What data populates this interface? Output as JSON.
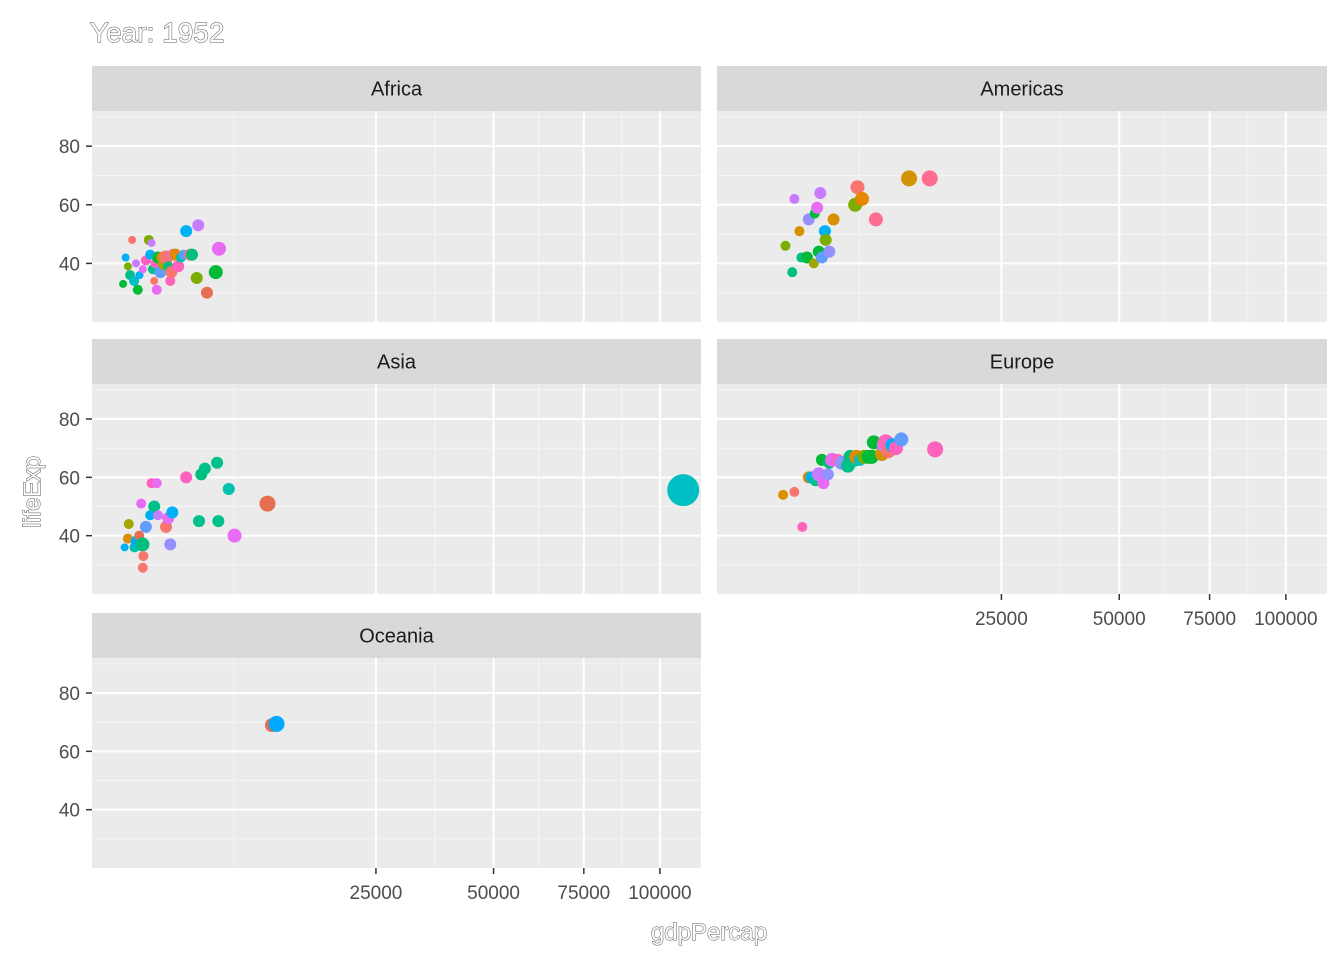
{
  "chart_data": {
    "type": "scatter",
    "title": "Year: 1952",
    "xlabel": "gdpPercap",
    "ylabel": "lifeExp",
    "xlim": [
      0,
      115000
    ],
    "ylim": [
      20,
      92
    ],
    "x_ticks": [
      25000,
      50000,
      75000,
      100000
    ],
    "x_tick_labels": [
      "25000",
      "50000",
      "75000",
      "100000"
    ],
    "y_ticks": [
      40,
      60,
      80
    ],
    "y_tick_labels": [
      "40",
      "60",
      "80"
    ],
    "x_scale": "sqrt",
    "grid": true,
    "legend": "none",
    "facets": [
      {
        "name": "Africa",
        "points": [
          {
            "x": 300,
            "y": 33,
            "color": "#00BA38",
            "size": 4
          },
          {
            "x": 350,
            "y": 42,
            "color": "#00B0F6",
            "size": 4
          },
          {
            "x": 400,
            "y": 39,
            "color": "#7CAE00",
            "size": 4
          },
          {
            "x": 450,
            "y": 36,
            "color": "#00C08B",
            "size": 5
          },
          {
            "x": 500,
            "y": 48,
            "color": "#F8766D",
            "size": 4
          },
          {
            "x": 550,
            "y": 34,
            "color": "#00BFC4",
            "size": 5
          },
          {
            "x": 600,
            "y": 40,
            "color": "#C77CFF",
            "size": 4
          },
          {
            "x": 650,
            "y": 31,
            "color": "#00BA38",
            "size": 5
          },
          {
            "x": 700,
            "y": 36,
            "color": "#00B0F6",
            "size": 4
          },
          {
            "x": 800,
            "y": 38,
            "color": "#E76BF3",
            "size": 4
          },
          {
            "x": 900,
            "y": 41,
            "color": "#FF62BC",
            "size": 5
          },
          {
            "x": 1000,
            "y": 48,
            "color": "#7CAE00",
            "size": 5
          },
          {
            "x": 1050,
            "y": 43,
            "color": "#00B0F6",
            "size": 5
          },
          {
            "x": 1100,
            "y": 47,
            "color": "#C77CFF",
            "size": 4
          },
          {
            "x": 1150,
            "y": 38,
            "color": "#00C08B",
            "size": 5
          },
          {
            "x": 1200,
            "y": 34,
            "color": "#F8766D",
            "size": 4
          },
          {
            "x": 1250,
            "y": 40,
            "color": "#FF62BC",
            "size": 5
          },
          {
            "x": 1300,
            "y": 31,
            "color": "#E76BF3",
            "size": 5
          },
          {
            "x": 1350,
            "y": 42,
            "color": "#00BA38",
            "size": 6
          },
          {
            "x": 1450,
            "y": 37,
            "color": "#619CFF",
            "size": 6
          },
          {
            "x": 1550,
            "y": 42,
            "color": "#D89000",
            "size": 6
          },
          {
            "x": 1650,
            "y": 40,
            "color": "#A3A500",
            "size": 7
          },
          {
            "x": 1700,
            "y": 42,
            "color": "#F8766D",
            "size": 7
          },
          {
            "x": 1800,
            "y": 39,
            "color": "#00BF7D",
            "size": 5
          },
          {
            "x": 1900,
            "y": 34,
            "color": "#FF62BC",
            "size": 5
          },
          {
            "x": 1950,
            "y": 37,
            "color": "#F8766D",
            "size": 6
          },
          {
            "x": 2050,
            "y": 43,
            "color": "#E76BF3",
            "size": 6
          },
          {
            "x": 2150,
            "y": 43,
            "color": "#E58700",
            "size": 6
          },
          {
            "x": 2300,
            "y": 39,
            "color": "#FF62BC",
            "size": 6
          },
          {
            "x": 2450,
            "y": 42,
            "color": "#00C0AF",
            "size": 5
          },
          {
            "x": 2600,
            "y": 43,
            "color": "#619CFF",
            "size": 5
          },
          {
            "x": 2750,
            "y": 51,
            "color": "#00B0F6",
            "size": 6
          },
          {
            "x": 3000,
            "y": 43,
            "color": "#F8766D",
            "size": 6
          },
          {
            "x": 3100,
            "y": 43,
            "color": "#00BF7D",
            "size": 6
          },
          {
            "x": 3400,
            "y": 35,
            "color": "#7CAE00",
            "size": 6
          },
          {
            "x": 3500,
            "y": 53,
            "color": "#C77CFF",
            "size": 6
          },
          {
            "x": 4100,
            "y": 30,
            "color": "#E76F51",
            "size": 6
          },
          {
            "x": 4750,
            "y": 37,
            "color": "#00BA38",
            "size": 7
          },
          {
            "x": 5000,
            "y": 45,
            "color": "#E76BF3",
            "size": 7
          }
        ]
      },
      {
        "name": "Americas",
        "points": [
          {
            "x": 1450,
            "y": 46,
            "color": "#7CAE00",
            "size": 5
          },
          {
            "x": 1750,
            "y": 37,
            "color": "#00BF7D",
            "size": 5
          },
          {
            "x": 1850,
            "y": 62,
            "color": "#C77CFF",
            "size": 5
          },
          {
            "x": 2100,
            "y": 51,
            "color": "#D89000",
            "size": 5
          },
          {
            "x": 2200,
            "y": 42,
            "color": "#00C08B",
            "size": 5
          },
          {
            "x": 2500,
            "y": 42,
            "color": "#00BA38",
            "size": 6
          },
          {
            "x": 2600,
            "y": 55,
            "color": "#9590FF",
            "size": 6
          },
          {
            "x": 2900,
            "y": 40,
            "color": "#A3A500",
            "size": 5
          },
          {
            "x": 2950,
            "y": 57,
            "color": "#00BA38",
            "size": 5
          },
          {
            "x": 3100,
            "y": 59,
            "color": "#E76BF3",
            "size": 6
          },
          {
            "x": 3200,
            "y": 44,
            "color": "#00BA38",
            "size": 6
          },
          {
            "x": 3300,
            "y": 64,
            "color": "#C77CFF",
            "size": 6
          },
          {
            "x": 3400,
            "y": 42,
            "color": "#619CFF",
            "size": 6
          },
          {
            "x": 3600,
            "y": 51,
            "color": "#00B0F6",
            "size": 6
          },
          {
            "x": 3650,
            "y": 48,
            "color": "#7CAE00",
            "size": 6
          },
          {
            "x": 3900,
            "y": 44,
            "color": "#9590FF",
            "size": 6
          },
          {
            "x": 4200,
            "y": 55,
            "color": "#D89000",
            "size": 6
          },
          {
            "x": 5900,
            "y": 60,
            "color": "#7CAE00",
            "size": 7
          },
          {
            "x": 6100,
            "y": 66,
            "color": "#F8766D",
            "size": 7
          },
          {
            "x": 6500,
            "y": 62,
            "color": "#E58700",
            "size": 7
          },
          {
            "x": 7800,
            "y": 55,
            "color": "#FF6C91",
            "size": 7
          },
          {
            "x": 11400,
            "y": 69,
            "color": "#D39200",
            "size": 8
          },
          {
            "x": 13990,
            "y": 69,
            "color": "#FF6C91",
            "size": 8
          }
        ]
      },
      {
        "name": "Asia",
        "points": [
          {
            "x": 330,
            "y": 36,
            "color": "#00B0F6",
            "size": 4
          },
          {
            "x": 400,
            "y": 39,
            "color": "#D89000",
            "size": 5
          },
          {
            "x": 420,
            "y": 44,
            "color": "#A3A500",
            "size": 5
          },
          {
            "x": 560,
            "y": 36,
            "color": "#00C0AF",
            "size": 5
          },
          {
            "x": 620,
            "y": 38,
            "color": "#00A9FF",
            "size": 6
          },
          {
            "x": 690,
            "y": 40,
            "color": "#E76F51",
            "size": 5
          },
          {
            "x": 750,
            "y": 51,
            "color": "#E76BF3",
            "size": 5
          },
          {
            "x": 790,
            "y": 37,
            "color": "#00BF7D",
            "size": 7
          },
          {
            "x": 800,
            "y": 29,
            "color": "#F8766D",
            "size": 5
          },
          {
            "x": 820,
            "y": 33,
            "color": "#F8766D",
            "size": 5
          },
          {
            "x": 900,
            "y": 43,
            "color": "#619CFF",
            "size": 6
          },
          {
            "x": 1050,
            "y": 47,
            "color": "#00B0F6",
            "size": 5
          },
          {
            "x": 1100,
            "y": 58,
            "color": "#FF62BC",
            "size": 5
          },
          {
            "x": 1200,
            "y": 50,
            "color": "#00C08B",
            "size": 6
          },
          {
            "x": 1300,
            "y": 58,
            "color": "#E76BF3",
            "size": 5
          },
          {
            "x": 1350,
            "y": 47,
            "color": "#C77CFF",
            "size": 5
          },
          {
            "x": 1700,
            "y": 43,
            "color": "#F8766D",
            "size": 6
          },
          {
            "x": 1800,
            "y": 46,
            "color": "#E76BF3",
            "size": 6
          },
          {
            "x": 1900,
            "y": 37,
            "color": "#9590FF",
            "size": 6
          },
          {
            "x": 2000,
            "y": 48,
            "color": "#00B0F6",
            "size": 6
          },
          {
            "x": 2750,
            "y": 60,
            "color": "#FF62BC",
            "size": 6
          },
          {
            "x": 3550,
            "y": 45,
            "color": "#00C08B",
            "size": 6
          },
          {
            "x": 3700,
            "y": 61,
            "color": "#00BF7D",
            "size": 6
          },
          {
            "x": 3950,
            "y": 63,
            "color": "#00C08B",
            "size": 6
          },
          {
            "x": 4850,
            "y": 65,
            "color": "#00C08B",
            "size": 6
          },
          {
            "x": 4950,
            "y": 45,
            "color": "#00C08B",
            "size": 6
          },
          {
            "x": 5800,
            "y": 56,
            "color": "#00C0AF",
            "size": 6
          },
          {
            "x": 6300,
            "y": 40,
            "color": "#E76BF3",
            "size": 7
          },
          {
            "x": 9550,
            "y": 51,
            "color": "#E76F51",
            "size": 8
          },
          {
            "x": 108382,
            "y": 55.6,
            "color": "#00BFC4",
            "size": 16
          }
        ]
      },
      {
        "name": "Europe",
        "points": [
          {
            "x": 1350,
            "y": 54,
            "color": "#D89000",
            "size": 5
          },
          {
            "x": 1850,
            "y": 55,
            "color": "#F8766D",
            "size": 5
          },
          {
            "x": 2250,
            "y": 43,
            "color": "#FF62BC",
            "size": 5
          },
          {
            "x": 2600,
            "y": 60,
            "color": "#E58700",
            "size": 6
          },
          {
            "x": 2750,
            "y": 60,
            "color": "#00B0F6",
            "size": 6
          },
          {
            "x": 3000,
            "y": 59,
            "color": "#00C08B",
            "size": 6
          },
          {
            "x": 3200,
            "y": 61,
            "color": "#C77CFF",
            "size": 7
          },
          {
            "x": 3400,
            "y": 66,
            "color": "#00BA38",
            "size": 6
          },
          {
            "x": 3500,
            "y": 58,
            "color": "#E76BF3",
            "size": 6
          },
          {
            "x": 3800,
            "y": 61,
            "color": "#9590FF",
            "size": 6
          },
          {
            "x": 3900,
            "y": 65,
            "color": "#00BF7D",
            "size": 6
          },
          {
            "x": 4100,
            "y": 66,
            "color": "#E76BF3",
            "size": 7
          },
          {
            "x": 4500,
            "y": 66,
            "color": "#FF62BC",
            "size": 6
          },
          {
            "x": 4800,
            "y": 65,
            "color": "#9590FF",
            "size": 7
          },
          {
            "x": 5300,
            "y": 64,
            "color": "#00C08B",
            "size": 7
          },
          {
            "x": 5500,
            "y": 67,
            "color": "#00BF7D",
            "size": 7
          },
          {
            "x": 5800,
            "y": 66,
            "color": "#00C08B",
            "size": 7
          },
          {
            "x": 6000,
            "y": 67,
            "color": "#E58700",
            "size": 7
          },
          {
            "x": 6300,
            "y": 66,
            "color": "#00BFC4",
            "size": 6
          },
          {
            "x": 6700,
            "y": 67,
            "color": "#7CAE00",
            "size": 7
          },
          {
            "x": 7100,
            "y": 67,
            "color": "#00BA38",
            "size": 7
          },
          {
            "x": 7400,
            "y": 67,
            "color": "#00BA38",
            "size": 7
          },
          {
            "x": 7600,
            "y": 72,
            "color": "#00BA38",
            "size": 7
          },
          {
            "x": 8400,
            "y": 68,
            "color": "#D39200",
            "size": 7
          },
          {
            "x": 8600,
            "y": 71,
            "color": "#C77CFF",
            "size": 7
          },
          {
            "x": 8800,
            "y": 72,
            "color": "#FF62BC",
            "size": 8
          },
          {
            "x": 9100,
            "y": 69,
            "color": "#F8766D",
            "size": 7
          },
          {
            "x": 9500,
            "y": 71,
            "color": "#00B0F6",
            "size": 7
          },
          {
            "x": 9900,
            "y": 70,
            "color": "#FF62BC",
            "size": 7
          },
          {
            "x": 10500,
            "y": 73,
            "color": "#619CFF",
            "size": 7
          },
          {
            "x": 14700,
            "y": 69.6,
            "color": "#FF62BC",
            "size": 8
          }
        ]
      },
      {
        "name": "Oceania",
        "points": [
          {
            "x": 10040,
            "y": 69,
            "color": "#E76F51",
            "size": 7
          },
          {
            "x": 10557,
            "y": 69.4,
            "color": "#00A9FF",
            "size": 8
          }
        ]
      }
    ]
  }
}
